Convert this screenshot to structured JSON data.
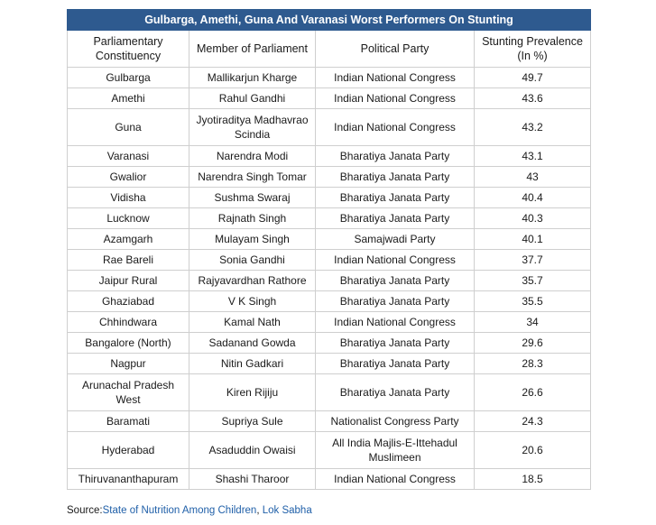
{
  "table": {
    "title": "Gulbarga, Amethi, Guna And Varanasi Worst Performers On Stunting",
    "headers": {
      "constituency": "Parliamentary Constituency",
      "member": "Member of Parliament",
      "party": "Political Party",
      "stunting": "Stunting Prevalence (In %)"
    },
    "rows": [
      {
        "constituency": "Gulbarga",
        "member": "Mallikarjun Kharge",
        "party": "Indian National Congress",
        "stunting": "49.7"
      },
      {
        "constituency": "Amethi",
        "member": "Rahul Gandhi",
        "party": "Indian National Congress",
        "stunting": "43.6"
      },
      {
        "constituency": "Guna",
        "member": "Jyotiraditya Madhavrao Scindia",
        "party": "Indian National Congress",
        "stunting": "43.2"
      },
      {
        "constituency": "Varanasi",
        "member": "Narendra Modi",
        "party": "Bharatiya Janata Party",
        "stunting": "43.1"
      },
      {
        "constituency": "Gwalior",
        "member": "Narendra Singh Tomar",
        "party": "Bharatiya Janata Party",
        "stunting": "43"
      },
      {
        "constituency": "Vidisha",
        "member": "Sushma Swaraj",
        "party": "Bharatiya Janata Party",
        "stunting": "40.4"
      },
      {
        "constituency": "Lucknow",
        "member": "Rajnath Singh",
        "party": "Bharatiya Janata Party",
        "stunting": "40.3"
      },
      {
        "constituency": "Azamgarh",
        "member": "Mulayam Singh",
        "party": "Samajwadi Party",
        "stunting": "40.1"
      },
      {
        "constituency": "Rae Bareli",
        "member": "Sonia Gandhi",
        "party": "Indian National Congress",
        "stunting": "37.7"
      },
      {
        "constituency": "Jaipur Rural",
        "member": "Rajyavardhan Rathore",
        "party": "Bharatiya Janata Party",
        "stunting": "35.7"
      },
      {
        "constituency": "Ghaziabad",
        "member": "V K Singh",
        "party": "Bharatiya Janata Party",
        "stunting": "35.5"
      },
      {
        "constituency": "Chhindwara",
        "member": "Kamal Nath",
        "party": "Indian National Congress",
        "stunting": "34"
      },
      {
        "constituency": "Bangalore (North)",
        "member": "Sadanand Gowda",
        "party": "Bharatiya Janata Party",
        "stunting": "29.6"
      },
      {
        "constituency": "Nagpur",
        "member": "Nitin Gadkari",
        "party": "Bharatiya Janata Party",
        "stunting": "28.3"
      },
      {
        "constituency": "Arunachal Pradesh West",
        "member": "Kiren Rijiju",
        "party": "Bharatiya Janata Party",
        "stunting": "26.6"
      },
      {
        "constituency": "Baramati",
        "member": "Supriya Sule",
        "party": "Nationalist Congress Party",
        "stunting": "24.3"
      },
      {
        "constituency": "Hyderabad",
        "member": "Asaduddin Owaisi",
        "party": "All India Majlis-E-Ittehadul Muslimeen",
        "stunting": "20.6"
      },
      {
        "constituency": "Thiruvananthapuram",
        "member": "Shashi Tharoor",
        "party": "Indian National Congress",
        "stunting": "18.5"
      }
    ]
  },
  "source": {
    "label": "Source:",
    "link1": "State of Nutrition Among Children",
    "separator": ", ",
    "link2": "Lok Sabha"
  },
  "colors": {
    "title_bg": "#2e5a8f",
    "link": "#1f5fa8"
  }
}
